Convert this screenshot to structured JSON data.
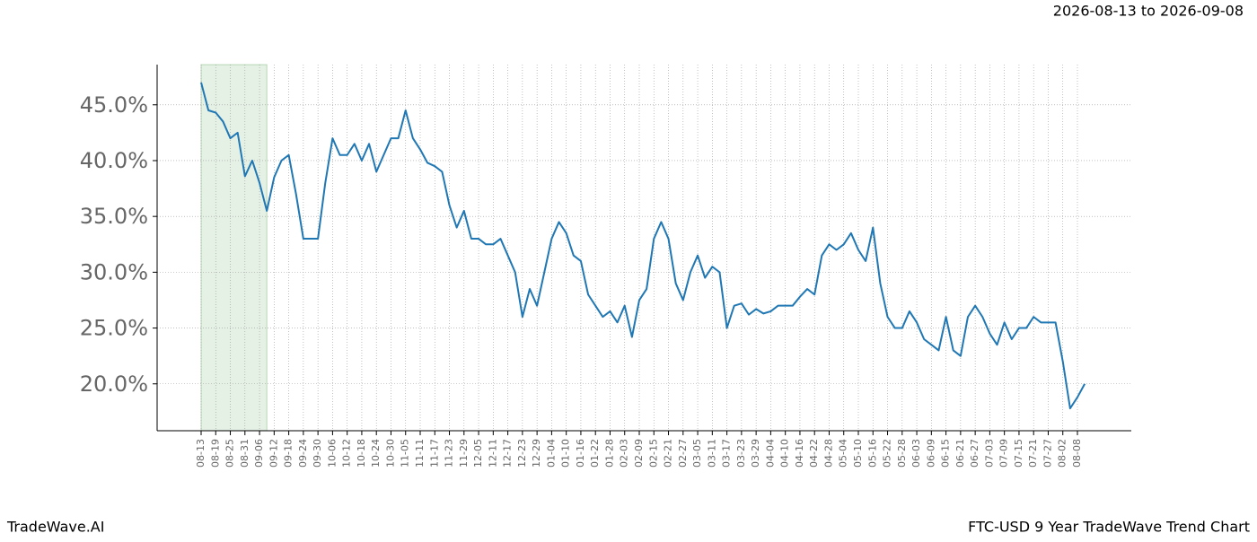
{
  "chart_data": {
    "type": "line",
    "subtitle": "2026-08-13 to 2026-09-08",
    "footer_left": "TradeWave.AI",
    "footer_right": "FTC-USD 9 Year TradeWave Trend Chart",
    "categories": [
      "08-13",
      null,
      "08-19",
      null,
      "08-25",
      null,
      "08-31",
      null,
      "09-06",
      null,
      "09-12",
      null,
      "09-18",
      null,
      "09-24",
      null,
      "09-30",
      null,
      "10-06",
      null,
      "10-12",
      null,
      "10-18",
      null,
      "10-24",
      null,
      "10-30",
      null,
      "11-05",
      null,
      "11-11",
      null,
      "11-17",
      null,
      "11-23",
      null,
      "11-29",
      null,
      "12-05",
      null,
      "12-11",
      null,
      "12-17",
      null,
      "12-23",
      null,
      "12-29",
      null,
      "01-04",
      null,
      "01-10",
      null,
      "01-16",
      null,
      "01-22",
      null,
      "01-28",
      null,
      "02-03",
      null,
      "02-09",
      null,
      "02-15",
      null,
      "02-21",
      null,
      "02-27",
      null,
      "03-05",
      null,
      "03-11",
      null,
      "03-17",
      null,
      "03-23",
      null,
      "03-29",
      null,
      "04-04",
      null,
      "04-10",
      null,
      "04-16",
      null,
      "04-22",
      null,
      "04-28",
      null,
      "05-04",
      null,
      "05-10",
      null,
      "05-16",
      null,
      "05-22",
      null,
      "05-28",
      null,
      "06-03",
      null,
      "06-09",
      null,
      "06-15",
      null,
      "06-21",
      null,
      "06-27",
      null,
      "07-03",
      null,
      "07-09",
      null,
      "07-15",
      null,
      "07-21",
      null,
      "07-27",
      null,
      "08-02",
      null,
      "08-08",
      null
    ],
    "series": [
      {
        "color": "#1f77b4",
        "values": [
          47,
          44.5,
          44.3,
          43.5,
          42,
          42.5,
          38.6,
          40,
          38,
          35.5,
          38.5,
          40,
          40.5,
          37,
          33,
          33,
          33,
          38,
          42,
          40.5,
          40.5,
          41.5,
          40,
          41.5,
          39,
          40.5,
          42,
          42,
          44.5,
          42,
          41,
          39.8,
          39.5,
          39,
          36,
          34,
          35.5,
          33,
          33,
          32.5,
          32.5,
          33,
          31.5,
          30,
          26,
          28.5,
          27,
          30,
          33,
          34.5,
          33.5,
          31.5,
          31,
          28,
          27,
          26,
          26.5,
          25.5,
          27,
          24.2,
          27.5,
          28.5,
          33,
          34.5,
          33,
          29,
          27.5,
          30,
          31.5,
          29.5,
          30.5,
          30,
          25,
          27,
          27.2,
          26.2,
          26.7,
          26.3,
          26.5,
          27,
          27,
          27,
          27.8,
          28.5,
          28,
          31.5,
          32.5,
          32,
          32.5,
          33.5,
          32,
          31,
          34,
          29,
          26,
          25,
          25,
          26.5,
          25.5,
          24,
          23.5,
          23,
          26,
          23,
          22.5,
          26,
          27,
          26,
          24.5,
          23.5,
          25.5,
          24,
          25,
          25,
          26,
          25.5,
          25.5,
          25.5,
          22,
          17.8,
          18.8,
          20
        ]
      }
    ],
    "ylim": [
      15.8,
      48.6
    ],
    "yticks": [
      {
        "value": 20,
        "label": "20.0%"
      },
      {
        "value": 25,
        "label": "25.0%"
      },
      {
        "value": 30,
        "label": "30.0%"
      },
      {
        "value": 35,
        "label": "35.0%"
      },
      {
        "value": 40,
        "label": "40.0%"
      },
      {
        "value": 45,
        "label": "45.0%"
      }
    ],
    "highlight": [
      "08-13",
      "09-06"
    ],
    "grid": true
  }
}
